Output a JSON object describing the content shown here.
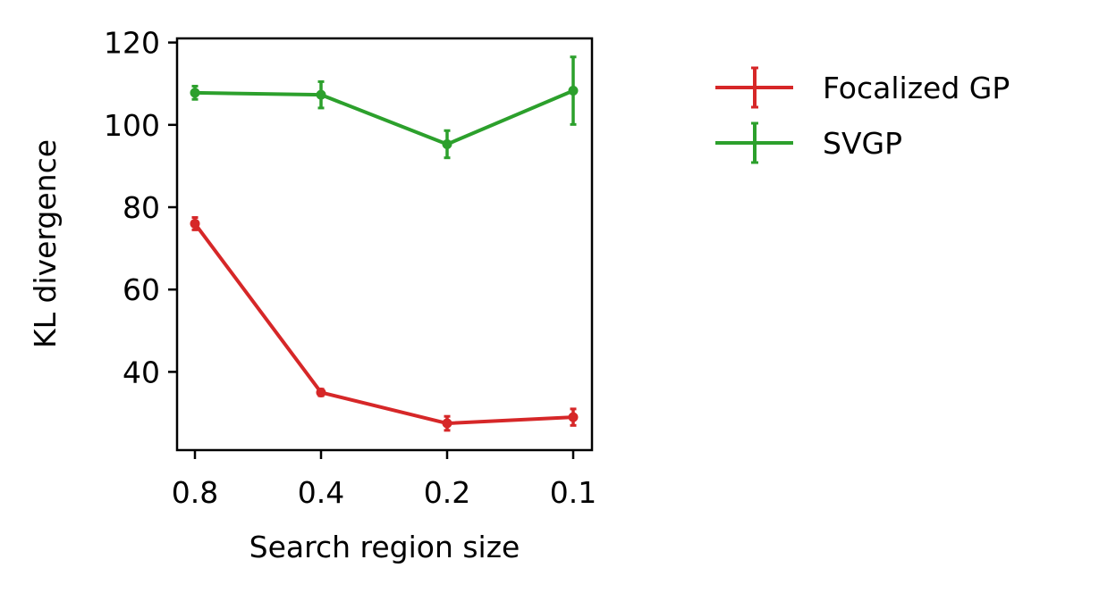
{
  "chart_data": {
    "type": "line",
    "xlabel": "Search region size",
    "ylabel": "KL divergence",
    "categories": [
      "0.8",
      "0.4",
      "0.2",
      "0.1"
    ],
    "yticks": [
      40,
      60,
      80,
      100,
      120
    ],
    "ylim": [
      21,
      121
    ],
    "grid": false,
    "legend_position": "outside-right",
    "series": [
      {
        "name": "Focalized GP",
        "color": "#d62728",
        "values": [
          76,
          35,
          27.5,
          29
        ],
        "errors": [
          1.5,
          0.8,
          1.7,
          2.0
        ]
      },
      {
        "name": "SVGP",
        "color": "#2ca02c",
        "values": [
          107.8,
          107.3,
          95.3,
          108.3
        ],
        "errors": [
          1.6,
          3.2,
          3.3,
          8.2
        ]
      }
    ]
  }
}
